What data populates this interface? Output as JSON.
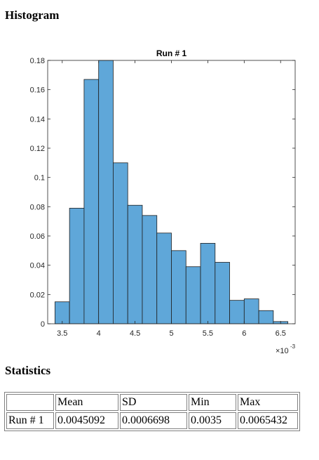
{
  "headings": {
    "histogram": "Histogram",
    "statistics": "Statistics"
  },
  "chart_data": {
    "type": "bar",
    "title": "Run # 1",
    "xlabel": "",
    "ylabel": "",
    "x_multiplier_label": "×10",
    "x_multiplier_exponent": "-3",
    "bin_edges": [
      3.4,
      3.6,
      3.8,
      4.0,
      4.2,
      4.4,
      4.6,
      4.8,
      5.0,
      5.2,
      5.4,
      5.6,
      5.8,
      6.0,
      6.2,
      6.4,
      6.6
    ],
    "values": [
      0.015,
      0.079,
      0.167,
      0.18,
      0.11,
      0.081,
      0.074,
      0.062,
      0.05,
      0.039,
      0.055,
      0.042,
      0.016,
      0.017,
      0.009,
      0.0015
    ],
    "xlim": [
      3.3,
      6.7
    ],
    "ylim": [
      0,
      0.18
    ],
    "xticks": [
      3.5,
      4,
      4.5,
      5,
      5.5,
      6,
      6.5
    ],
    "xtick_labels": [
      "3.5",
      "4",
      "4.5",
      "5",
      "5.5",
      "6",
      "6.5"
    ],
    "yticks": [
      0,
      0.02,
      0.04,
      0.06,
      0.08,
      0.1,
      0.12,
      0.14,
      0.16,
      0.18
    ],
    "ytick_labels": [
      "0",
      "0.02",
      "0.04",
      "0.06",
      "0.08",
      "0.1",
      "0.12",
      "0.14",
      "0.16",
      "0.18"
    ],
    "grid": false,
    "legend": "none",
    "colors": {
      "bar_fill": "#5fa7d9",
      "bar_edge": "#1f1f1f",
      "axis": "#262626",
      "tick_text": "#262626"
    }
  },
  "stats_table": {
    "headers": [
      "",
      "Mean",
      "SD",
      "Min",
      "Max"
    ],
    "rows": [
      [
        "Run # 1",
        "0.0045092",
        "0.0006698",
        "0.0035",
        "0.0065432"
      ]
    ]
  }
}
